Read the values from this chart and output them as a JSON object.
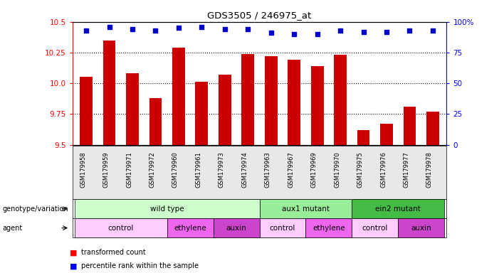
{
  "title": "GDS3505 / 246975_at",
  "samples": [
    "GSM179958",
    "GSM179959",
    "GSM179971",
    "GSM179972",
    "GSM179960",
    "GSM179961",
    "GSM179973",
    "GSM179974",
    "GSM179963",
    "GSM179967",
    "GSM179969",
    "GSM179970",
    "GSM179975",
    "GSM179976",
    "GSM179977",
    "GSM179978"
  ],
  "bar_values": [
    10.05,
    10.35,
    10.08,
    9.88,
    10.29,
    10.01,
    10.07,
    10.24,
    10.22,
    10.19,
    10.14,
    10.23,
    9.62,
    9.67,
    9.81,
    9.77
  ],
  "percentile_values": [
    93,
    96,
    94,
    93,
    95,
    96,
    94,
    94,
    91,
    90,
    90,
    93,
    92,
    92,
    93,
    93
  ],
  "ylim_left": [
    9.5,
    10.5
  ],
  "ylim_right": [
    0,
    100
  ],
  "yticks_left": [
    9.5,
    9.75,
    10.0,
    10.25,
    10.5
  ],
  "yticks_right": [
    0,
    25,
    50,
    75,
    100
  ],
  "bar_color": "#cc0000",
  "dot_color": "#0000cc",
  "genotype_groups": [
    {
      "label": "wild type",
      "start": 0,
      "end": 8,
      "color": "#ccffcc"
    },
    {
      "label": "aux1 mutant",
      "start": 8,
      "end": 12,
      "color": "#99ee99"
    },
    {
      "label": "ein2 mutant",
      "start": 12,
      "end": 16,
      "color": "#44bb44"
    }
  ],
  "agent_groups": [
    {
      "label": "control",
      "start": 0,
      "end": 4,
      "color": "#ffccff"
    },
    {
      "label": "ethylene",
      "start": 4,
      "end": 6,
      "color": "#ee66ee"
    },
    {
      "label": "auxin",
      "start": 6,
      "end": 8,
      "color": "#cc44cc"
    },
    {
      "label": "control",
      "start": 8,
      "end": 10,
      "color": "#ffccff"
    },
    {
      "label": "ethylene",
      "start": 10,
      "end": 12,
      "color": "#ee66ee"
    },
    {
      "label": "control",
      "start": 12,
      "end": 14,
      "color": "#ffccff"
    },
    {
      "label": "auxin",
      "start": 14,
      "end": 16,
      "color": "#cc44cc"
    }
  ],
  "genotype_label": "genotype/variation",
  "agent_label": "agent"
}
